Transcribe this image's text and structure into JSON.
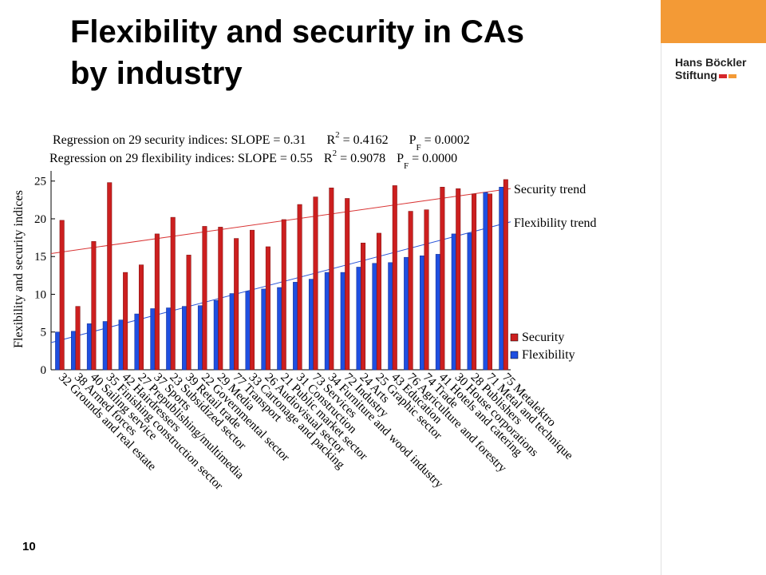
{
  "slide": {
    "title_line1": "Flexibility and security in CAs",
    "title_line2": "by industry",
    "page_number": "10"
  },
  "logo": {
    "line1": "Hans Böckler",
    "line2": "Stiftung",
    "accent_color": "#f39a36",
    "bar_color": "#d6262a"
  },
  "chart_data": {
    "type": "bar",
    "regression": {
      "security": {
        "prefix": "Regression on 29 security indices: SLOPE = 0.31",
        "r2_label": "R",
        "r2_sup": "2",
        "r2_value": " = 0.4162",
        "p_label": "P",
        "p_sub": "F",
        "p_value": " = 0.0002"
      },
      "flexibility": {
        "prefix": "Regression on 29 flexibility indices: SLOPE = 0.55",
        "r2_label": "R",
        "r2_sup": "2",
        "r2_value": " = 0.9078",
        "p_label": "P",
        "p_sub": "F",
        "p_value": " = 0.0000"
      }
    },
    "ylabel": "Flexibility and security indices",
    "ylim": [
      0,
      25.5
    ],
    "yticks": [
      0,
      5,
      10,
      15,
      20,
      25
    ],
    "categories": [
      "32 Grounds and real estate",
      "38 Armed forces",
      "40 Sailing service",
      "35 Finishing construction sector",
      "42 Hairdressers",
      "27 Prepublishing/multimedia",
      "37 Sports",
      "23 Subsidized sector",
      "39 Retail trade",
      "22 Governmental sector",
      "29 Media",
      "77 Transport",
      "33 Cartonage and packing",
      "26 Audiovisual sector",
      "21 Public market sector",
      "31 Construction",
      "73 Services",
      "34 Furniture and wood industry",
      "72 Industry",
      "24 Arts",
      "25 Graphic sector",
      "43 Education",
      "76 Agriculture and forestry",
      "74 Trade",
      "41 Hotels and catering",
      "30 House corporations",
      "28 Publishers",
      "71 Metal and technique",
      "75 Metalektro"
    ],
    "series": [
      {
        "name": "Security",
        "color": "#cc1f1f",
        "values": [
          19.8,
          8.4,
          17.0,
          24.8,
          12.9,
          13.9,
          18.0,
          20.2,
          15.2,
          19.0,
          18.9,
          17.4,
          18.5,
          16.3,
          19.9,
          21.9,
          22.9,
          24.1,
          22.7,
          16.8,
          18.1,
          24.4,
          21.0,
          21.2,
          24.2,
          24.0,
          23.3,
          23.3,
          25.2
        ]
      },
      {
        "name": "Flexibility",
        "color": "#1f4fe0",
        "values": [
          5.0,
          5.1,
          6.1,
          6.4,
          6.6,
          7.4,
          8.1,
          8.2,
          8.4,
          8.5,
          9.2,
          10.1,
          10.4,
          10.7,
          10.9,
          11.6,
          12.0,
          12.9,
          12.9,
          13.6,
          14.1,
          14.2,
          14.9,
          15.1,
          15.3,
          18.0,
          18.1,
          23.5,
          24.2
        ]
      }
    ],
    "trends": [
      {
        "name": "Security trend",
        "color": "#d93535",
        "start": 15.4,
        "end": 24.0
      },
      {
        "name": "Flexibility trend",
        "color": "#2b56d8",
        "start": 3.6,
        "end": 19.6
      }
    ],
    "legend_position": "lower-right",
    "grid": false
  }
}
